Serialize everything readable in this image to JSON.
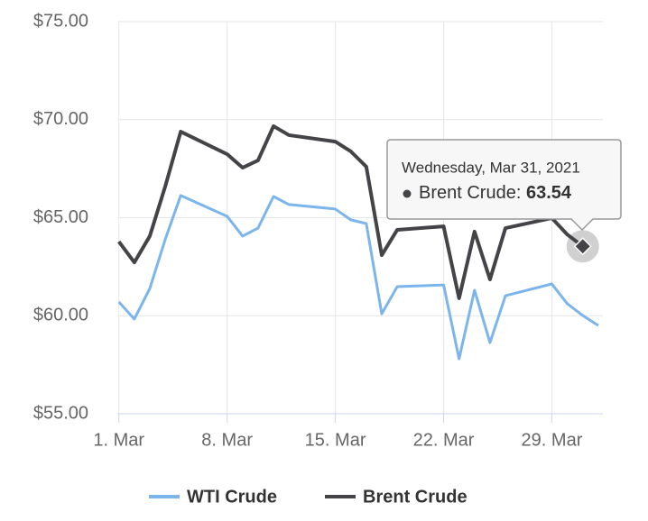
{
  "chart_data": {
    "type": "line",
    "x": [
      1,
      2,
      3,
      4,
      5,
      8,
      9,
      10,
      11,
      12,
      15,
      16,
      17,
      18,
      19,
      22,
      23,
      24,
      25,
      26,
      29,
      30,
      31,
      32
    ],
    "series": [
      {
        "name": "WTI Crude",
        "color": "#7cb5ec",
        "values": [
          60.7,
          59.83,
          61.39,
          63.9,
          66.13,
          65.07,
          64.06,
          64.47,
          66.08,
          65.67,
          65.44,
          64.89,
          64.7,
          60.1,
          61.48,
          61.57,
          57.8,
          61.3,
          58.63,
          61.02,
          61.62,
          60.61,
          60.01,
          59.5
        ]
      },
      {
        "name": "Brent Crude",
        "color": "#434348",
        "values": [
          63.78,
          62.72,
          64.06,
          66.6,
          69.39,
          68.24,
          67.55,
          67.92,
          69.67,
          69.21,
          68.88,
          68.38,
          67.6,
          63.09,
          64.38,
          64.56,
          60.89,
          64.29,
          61.85,
          64.47,
          64.98,
          64.14,
          63.54,
          null
        ]
      }
    ],
    "xlim": [
      0.9,
      32.3
    ],
    "xticks": [
      {
        "value": 1,
        "label": "1. Mar"
      },
      {
        "value": 8,
        "label": "8. Mar"
      },
      {
        "value": 15,
        "label": "15. Mar"
      },
      {
        "value": 22,
        "label": "22. Mar"
      },
      {
        "value": 29,
        "label": "29. Mar"
      }
    ],
    "ylim": [
      55,
      75
    ],
    "yticks": [
      {
        "value": 55,
        "label": "$55.00"
      },
      {
        "value": 60,
        "label": "$60.00"
      },
      {
        "value": 65,
        "label": "$65.00"
      },
      {
        "value": 70,
        "label": "$70.00"
      },
      {
        "value": 75,
        "label": "$75.00"
      }
    ],
    "grid": true,
    "legend": "bottom",
    "tooltip": {
      "date": "Wednesday, Mar 31, 2021"
    }
  }
}
